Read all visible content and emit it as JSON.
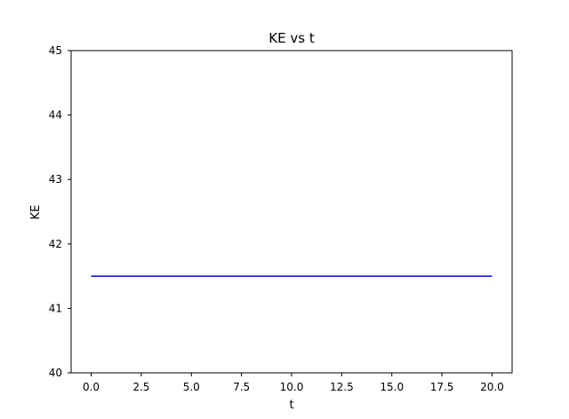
{
  "chart_data": {
    "type": "line",
    "title": "KE vs t",
    "xlabel": "t",
    "ylabel": "KE",
    "xlim": [
      -1,
      21
    ],
    "ylim": [
      40,
      45
    ],
    "x_ticks": [
      0.0,
      2.5,
      5.0,
      7.5,
      10.0,
      12.5,
      15.0,
      17.5,
      20.0
    ],
    "x_tick_labels": [
      "0.0",
      "2.5",
      "5.0",
      "7.5",
      "10.0",
      "12.5",
      "15.0",
      "17.5",
      "20.0"
    ],
    "y_ticks": [
      40,
      41,
      42,
      43,
      44,
      45
    ],
    "y_tick_labels": [
      "40",
      "41",
      "42",
      "43",
      "44",
      "45"
    ],
    "grid": false,
    "series": [
      {
        "color": "#0000ff",
        "x": [
          0,
          20
        ],
        "y": [
          41.5,
          41.5
        ]
      }
    ]
  }
}
